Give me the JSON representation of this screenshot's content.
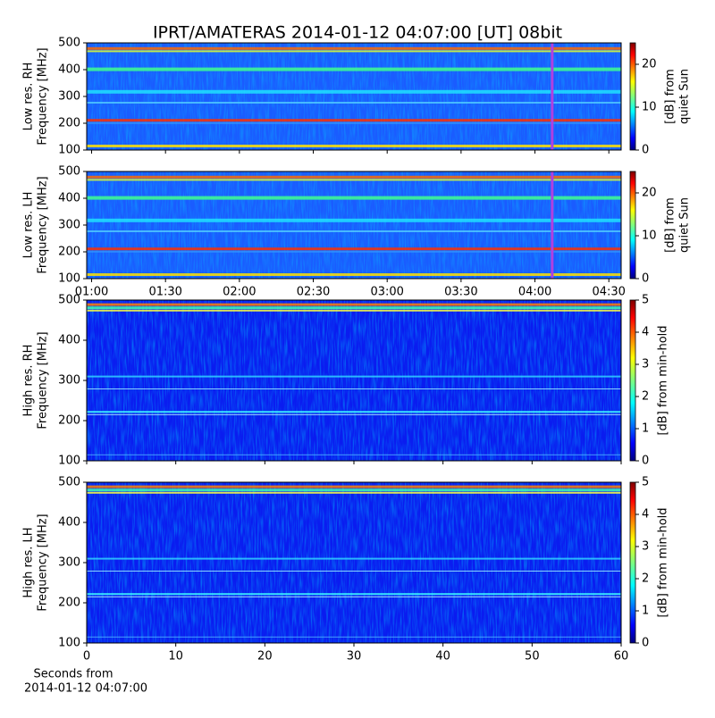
{
  "title": "IPRT/AMATERAS 2014-01-12 04:07:00 [UT]   08bit",
  "chart_data": [
    {
      "type": "heatmap",
      "ylabel": [
        "Low res. RH",
        "Frequency [MHz]"
      ],
      "ylim": [
        100,
        500
      ],
      "yticks": [
        100,
        200,
        300,
        400,
        500
      ],
      "xlim": [
        "00:58",
        "04:35"
      ],
      "xticks": [
        "01:00",
        "01:30",
        "02:00",
        "02:30",
        "03:00",
        "03:30",
        "04:00",
        "04:30"
      ],
      "show_xtick_labels": false,
      "marker_time": "04:07",
      "marker_color": "#b040e0",
      "colorbar_label": [
        "[dB] from",
        "quiet Sun"
      ],
      "clim": [
        0,
        25
      ],
      "cticks": [
        0,
        10,
        20
      ]
    },
    {
      "type": "heatmap",
      "ylabel": [
        "Low res. LH",
        "Frequency [MHz]"
      ],
      "ylim": [
        100,
        500
      ],
      "yticks": [
        100,
        200,
        300,
        400,
        500
      ],
      "xlim": [
        "00:58",
        "04:35"
      ],
      "xticks": [
        "01:00",
        "01:30",
        "02:00",
        "02:30",
        "03:00",
        "03:30",
        "04:00",
        "04:30"
      ],
      "show_xtick_labels": true,
      "marker_time": "04:07",
      "marker_color": "#b040e0",
      "colorbar_label": [
        "[dB] from",
        "quiet Sun"
      ],
      "clim": [
        0,
        25
      ],
      "cticks": [
        0,
        10,
        20
      ]
    },
    {
      "type": "heatmap",
      "ylabel": [
        "High res. RH",
        "Frequency [MHz]"
      ],
      "ylim": [
        100,
        500
      ],
      "yticks": [
        100,
        200,
        300,
        400,
        500
      ],
      "xlim": [
        0,
        60
      ],
      "xticks": [
        0,
        10,
        20,
        30,
        40,
        50,
        60
      ],
      "show_xtick_labels": false,
      "colorbar_label": [
        "[dB] from min-hold"
      ],
      "clim": [
        0,
        5
      ],
      "cticks": [
        0,
        1,
        2,
        3,
        4,
        5
      ]
    },
    {
      "type": "heatmap",
      "ylabel": [
        "High res. LH",
        "Frequency [MHz]"
      ],
      "ylim": [
        100,
        500
      ],
      "yticks": [
        100,
        200,
        300,
        400,
        500
      ],
      "xlim": [
        0,
        60
      ],
      "xticks": [
        0,
        10,
        20,
        30,
        40,
        50,
        60
      ],
      "show_xtick_labels": true,
      "xlabel": [
        "Seconds from",
        "2014-01-12 04:07:00"
      ],
      "colorbar_label": [
        "[dB] from min-hold"
      ],
      "clim": [
        0,
        5
      ],
      "cticks": [
        0,
        1,
        2,
        3,
        4,
        5
      ]
    }
  ]
}
